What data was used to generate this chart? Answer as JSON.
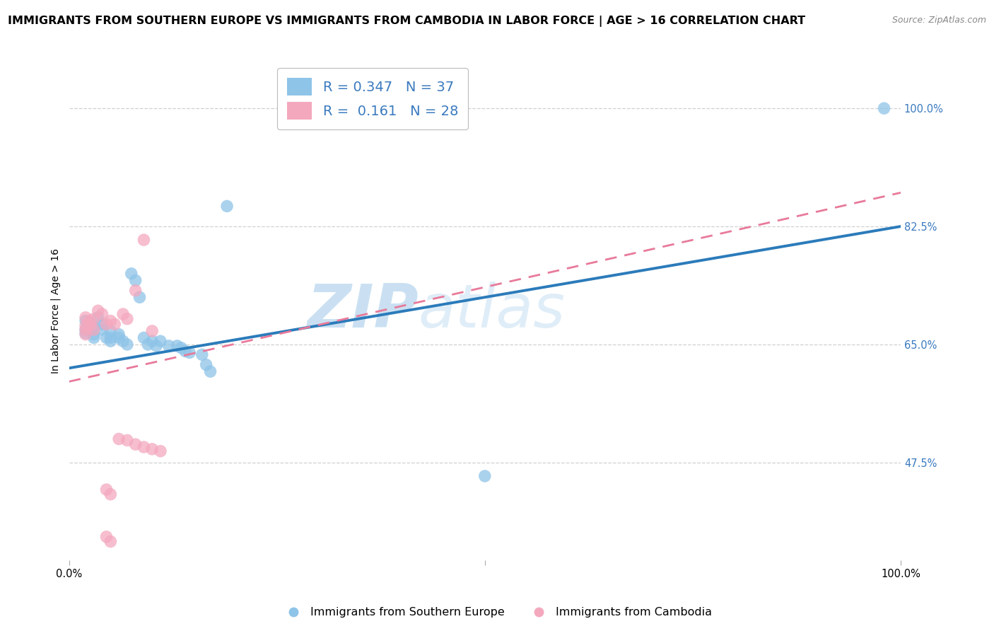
{
  "title": "IMMIGRANTS FROM SOUTHERN EUROPE VS IMMIGRANTS FROM CAMBODIA IN LABOR FORCE | AGE > 16 CORRELATION CHART",
  "source": "Source: ZipAtlas.com",
  "ylabel": "In Labor Force | Age > 16",
  "xlim": [
    0.0,
    1.0
  ],
  "ylim": [
    0.33,
    1.07
  ],
  "legend_r1": "R = 0.347",
  "legend_n1": "N = 37",
  "legend_r2": "R =  0.161",
  "legend_n2": "N = 28",
  "blue_color": "#8ec4e8",
  "pink_color": "#f4a8be",
  "line_blue": "#2b7bba",
  "line_pink": "#e87a9a",
  "label_color": "#3a7abf",
  "watermark_zip": "ZIP",
  "watermark_atlas": "atlas",
  "grid_color": "#d0d0d0",
  "background_color": "#ffffff",
  "title_fontsize": 11.5,
  "axis_label_fontsize": 10,
  "tick_fontsize": 10.5,
  "legend_fontsize": 14,
  "ytick_vals": [
    0.475,
    0.65,
    0.825,
    1.0
  ],
  "ytick_labels": [
    "47.5%",
    "65.0%",
    "82.5%",
    "100.0%"
  ],
  "xtick_vals": [
    0.0,
    0.5,
    1.0
  ],
  "xtick_labels": [
    "0.0%",
    "",
    "100.0%"
  ],
  "blue_line": [
    [
      0.0,
      0.615
    ],
    [
      1.0,
      0.825
    ]
  ],
  "pink_line": [
    [
      0.0,
      0.595
    ],
    [
      1.0,
      0.875
    ]
  ],
  "scatter_blue": [
    [
      0.02,
      0.685
    ],
    [
      0.02,
      0.672
    ],
    [
      0.02,
      0.667
    ],
    [
      0.025,
      0.68
    ],
    [
      0.03,
      0.675
    ],
    [
      0.03,
      0.665
    ],
    [
      0.03,
      0.66
    ],
    [
      0.035,
      0.69
    ],
    [
      0.04,
      0.68
    ],
    [
      0.04,
      0.672
    ],
    [
      0.045,
      0.66
    ],
    [
      0.05,
      0.67
    ],
    [
      0.05,
      0.66
    ],
    [
      0.05,
      0.655
    ],
    [
      0.06,
      0.665
    ],
    [
      0.06,
      0.66
    ],
    [
      0.065,
      0.655
    ],
    [
      0.07,
      0.65
    ],
    [
      0.075,
      0.755
    ],
    [
      0.08,
      0.745
    ],
    [
      0.085,
      0.72
    ],
    [
      0.09,
      0.66
    ],
    [
      0.095,
      0.65
    ],
    [
      0.1,
      0.655
    ],
    [
      0.105,
      0.648
    ],
    [
      0.11,
      0.655
    ],
    [
      0.12,
      0.648
    ],
    [
      0.13,
      0.648
    ],
    [
      0.135,
      0.645
    ],
    [
      0.14,
      0.64
    ],
    [
      0.145,
      0.638
    ],
    [
      0.16,
      0.635
    ],
    [
      0.165,
      0.62
    ],
    [
      0.17,
      0.61
    ],
    [
      0.19,
      0.855
    ],
    [
      0.5,
      0.455
    ],
    [
      0.98,
      1.0
    ]
  ],
  "scatter_pink": [
    [
      0.02,
      0.69
    ],
    [
      0.02,
      0.678
    ],
    [
      0.02,
      0.672
    ],
    [
      0.02,
      0.665
    ],
    [
      0.025,
      0.685
    ],
    [
      0.025,
      0.678
    ],
    [
      0.03,
      0.688
    ],
    [
      0.03,
      0.672
    ],
    [
      0.035,
      0.7
    ],
    [
      0.04,
      0.695
    ],
    [
      0.045,
      0.68
    ],
    [
      0.05,
      0.685
    ],
    [
      0.055,
      0.68
    ],
    [
      0.065,
      0.695
    ],
    [
      0.07,
      0.688
    ],
    [
      0.08,
      0.73
    ],
    [
      0.09,
      0.805
    ],
    [
      0.1,
      0.67
    ],
    [
      0.06,
      0.51
    ],
    [
      0.07,
      0.508
    ],
    [
      0.08,
      0.502
    ],
    [
      0.09,
      0.498
    ],
    [
      0.1,
      0.495
    ],
    [
      0.11,
      0.492
    ],
    [
      0.045,
      0.435
    ],
    [
      0.05,
      0.428
    ],
    [
      0.045,
      0.365
    ],
    [
      0.05,
      0.358
    ]
  ]
}
